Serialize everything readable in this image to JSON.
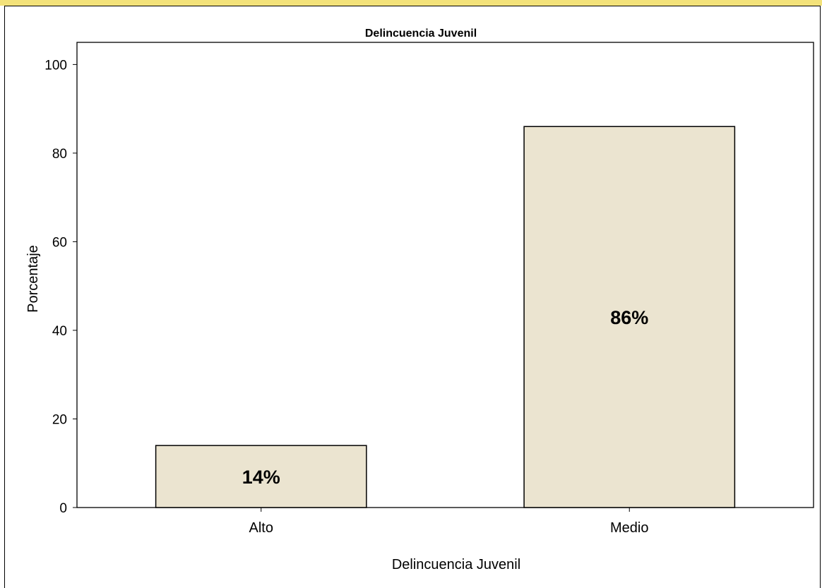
{
  "chart_data": {
    "type": "bar",
    "title": "Delincuencia Juvenil",
    "xlabel": "Delincuencia Juvenil",
    "ylabel": "Porcentaje",
    "categories": [
      "Alto",
      "Medio"
    ],
    "values": [
      14,
      86
    ],
    "data_labels": [
      "14%",
      "86%"
    ],
    "yticks": [
      "0",
      "20",
      "40",
      "60",
      "80",
      "100"
    ],
    "ylim": [
      0,
      105
    ],
    "grid": false,
    "bar_color": "#ebe4d0",
    "bar_stroke": "#000000"
  }
}
